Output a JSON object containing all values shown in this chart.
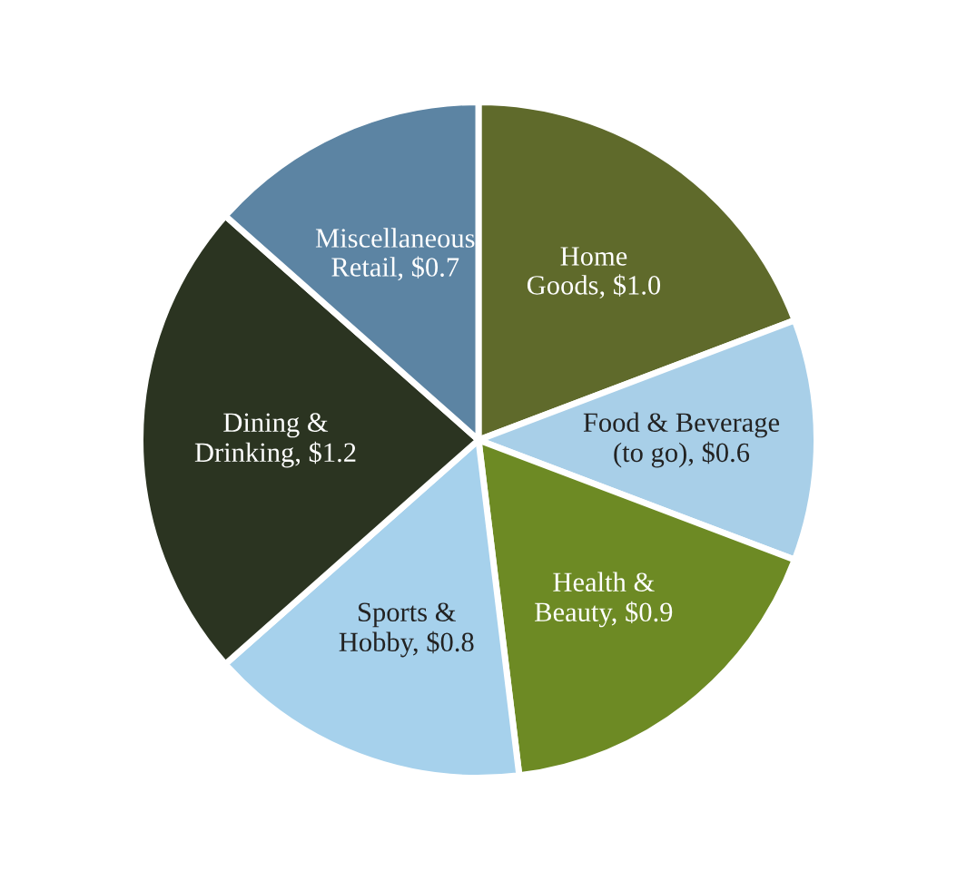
{
  "chart_data": {
    "type": "pie",
    "categories": [
      "Home Goods",
      "Food & Beverage (to go)",
      "Health & Beauty",
      "Sports & Hobby",
      "Dining & Drinking",
      "Miscellaneous Retail"
    ],
    "values": [
      1.0,
      0.6,
      0.9,
      0.8,
      1.2,
      0.7
    ],
    "value_labels": [
      "$1.0",
      "$0.6",
      "$0.9",
      "$0.8",
      "$1.2",
      "$0.7"
    ],
    "colors": [
      "#5f6a2b",
      "#a8cfe8",
      "#6d8a24",
      "#a6d1ec",
      "#2b3421",
      "#5c84a3"
    ]
  }
}
